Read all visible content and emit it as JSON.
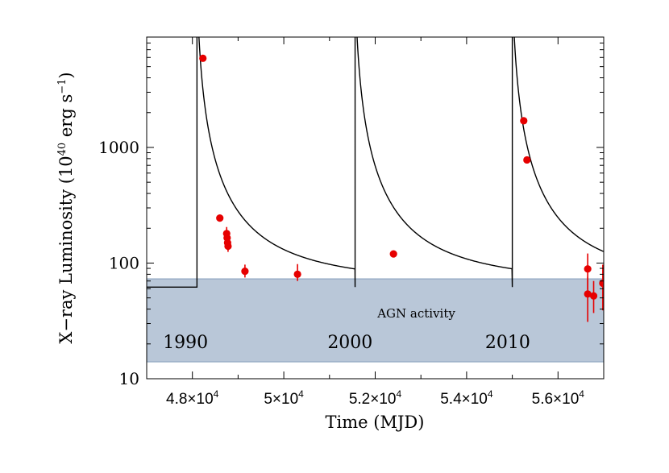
{
  "chart_data": {
    "type": "scatter",
    "title": "",
    "xlabel": "Time (MJD)",
    "ylabel_main": "X−ray Luminosity (10",
    "ylabel_exp": "40",
    "ylabel_unit": " erg s",
    "ylabel_unit_exp": "−1",
    "ylabel_close": ")",
    "xlim": [
      47000,
      57000
    ],
    "ylim": [
      10,
      9000
    ],
    "yscale": "log",
    "x_ticks": [
      {
        "value": 48000,
        "mantissa": "4.8×10",
        "exp": "4"
      },
      {
        "value": 50000,
        "mantissa": "5×10",
        "exp": "4"
      },
      {
        "value": 52000,
        "mantissa": "5.2×10",
        "exp": "4"
      },
      {
        "value": 54000,
        "mantissa": "5.4×10",
        "exp": "4"
      },
      {
        "value": 56000,
        "mantissa": "5.6×10",
        "exp": "4"
      }
    ],
    "y_ticks": [
      {
        "value": 10,
        "label": "10"
      },
      {
        "value": 100,
        "label": "100"
      },
      {
        "value": 1000,
        "label": "1000"
      }
    ],
    "shaded_band": {
      "label": "AGN activity",
      "ymin": 14,
      "ymax": 73,
      "color": "#b9c7d8",
      "edge": "#8fa6c1"
    },
    "year_labels": [
      {
        "x": 47850,
        "text": "1990"
      },
      {
        "x": 51450,
        "text": "2000"
      },
      {
        "x": 54900,
        "text": "2010"
      }
    ],
    "model_curve": {
      "name": "periodic outburst model",
      "color": "#000000",
      "baseline": 62,
      "outburst_starts": [
        48100,
        51560,
        55000
      ],
      "decay_origin_offset": -50,
      "decay_power": 1.6,
      "decay_scale": 8000,
      "before_first_x": 47000
    },
    "points": [
      {
        "x": 48230,
        "y": 5900,
        "err_lo": 0,
        "err_hi": 0
      },
      {
        "x": 48600,
        "y": 245,
        "err_lo": 0,
        "err_hi": 0
      },
      {
        "x": 48750,
        "y": 180,
        "err_lo": 20,
        "err_hi": 25
      },
      {
        "x": 48760,
        "y": 165,
        "err_lo": 18,
        "err_hi": 20
      },
      {
        "x": 48770,
        "y": 150,
        "err_lo": 15,
        "err_hi": 18
      },
      {
        "x": 48780,
        "y": 140,
        "err_lo": 15,
        "err_hi": 20
      },
      {
        "x": 49150,
        "y": 85,
        "err_lo": 10,
        "err_hi": 12
      },
      {
        "x": 50300,
        "y": 80,
        "err_lo": 10,
        "err_hi": 18
      },
      {
        "x": 52400,
        "y": 120,
        "err_lo": 0,
        "err_hi": 0
      },
      {
        "x": 55250,
        "y": 1700,
        "err_lo": 0,
        "err_hi": 0
      },
      {
        "x": 55320,
        "y": 780,
        "err_lo": 0,
        "err_hi": 0
      },
      {
        "x": 56650,
        "y": 89,
        "err_lo": 30,
        "err_hi": 32
      },
      {
        "x": 56650,
        "y": 54,
        "err_lo": 23,
        "err_hi": 22
      },
      {
        "x": 56780,
        "y": 52,
        "err_lo": 15,
        "err_hi": 18
      },
      {
        "x": 56980,
        "y": 67,
        "err_lo": 28,
        "err_hi": 30
      }
    ],
    "point_color": "#e60000"
  }
}
